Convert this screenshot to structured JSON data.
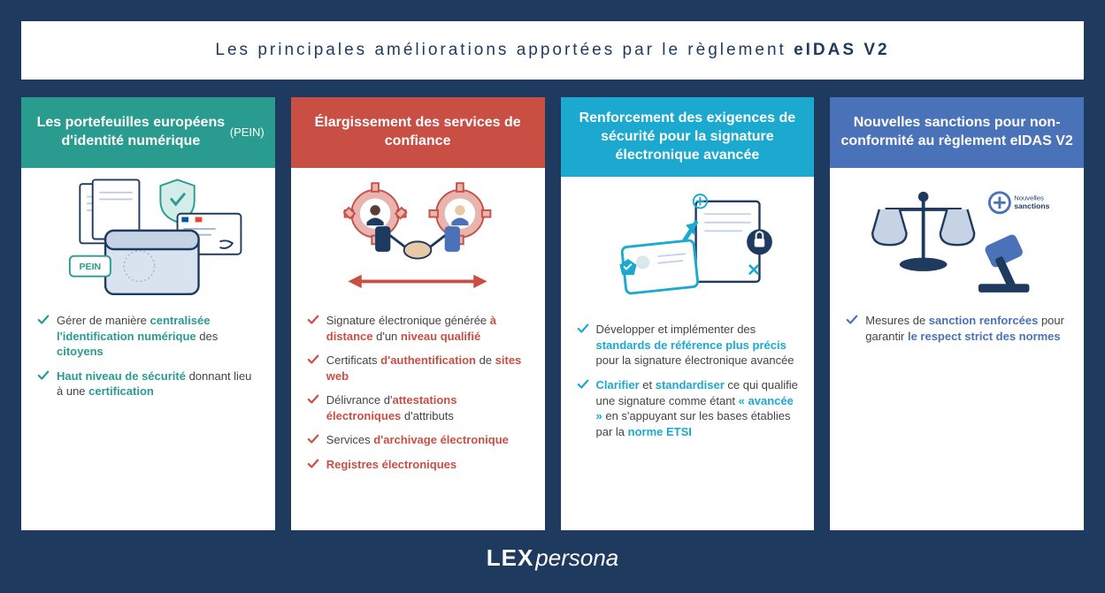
{
  "title_part1": "Les principales améliorations apportées par le règlement ",
  "title_bold": "eIDAS V2",
  "footer_brand_bold": "LEX",
  "footer_brand_light": "persona",
  "colors": {
    "background": "#1e3a5f",
    "card_bg": "#ffffff",
    "teal": "#2a9b8f",
    "red": "#c94f45",
    "cyan": "#1ba9cf",
    "blue": "#4a72b8",
    "body_text": "#444444"
  },
  "cards": [
    {
      "header_html": "Les portefeuilles européens d'identité numérique <span class='sub'>(PEIN)</span>",
      "header_color": "#2a9b8f",
      "accent_class": "teal",
      "illus_label": "PEIN",
      "items": [
        "Gérer de manière <b>centralisée l'identification numérique</b> des <b>citoyens</b>",
        "<b>Haut niveau de sécurité</b> donnant lieu à une <b>certification</b>"
      ]
    },
    {
      "header_html": "Élargissement des services de confiance",
      "header_color": "#c94f45",
      "accent_class": "red",
      "items": [
        "Signature électronique générée <b>à distance</b> d'un <b>niveau qualifié</b>",
        "Certificats <b>d'authentification</b> de <b>sites web</b>",
        "Délivrance d'<b>attestations électroniques</b> d'attributs",
        "Services <b>d'archivage électronique</b>",
        "<b>Registres électroniques</b>"
      ]
    },
    {
      "header_html": "Renforcement des exigences de sécurité pour la signature électronique avancée",
      "header_color": "#1ba9cf",
      "accent_class": "cyan",
      "items": [
        "Développer et implémenter des <b>standards de référence plus précis</b> pour la signature électronique avancée",
        "<b>Clarifier</b> et <b>standardiser</b> ce qui qualifie une signature comme étant <b>« avancée »</b> en s'appuyant sur les bases établies par la <b>norme ETSI</b>"
      ]
    },
    {
      "header_html": "Nouvelles sanctions pour non-conformité au règlement eIDAS V2",
      "header_color": "#4a72b8",
      "accent_class": "blue",
      "badge_label": "Nouvelles sanctions",
      "items": [
        "Mesures de <b>sanction renforcées</b> pour garantir <b>le respect strict des normes</b>"
      ]
    }
  ]
}
